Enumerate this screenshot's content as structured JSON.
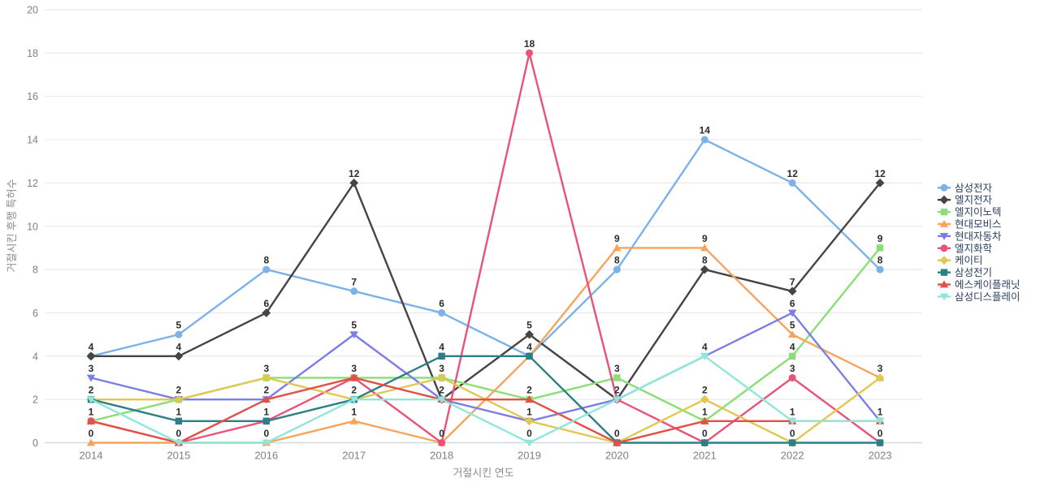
{
  "chart_data": {
    "type": "line",
    "title": "",
    "xlabel": "거절시킨 연도",
    "ylabel": "거절시킨 후행 특허수",
    "x": [
      "2014",
      "2015",
      "2016",
      "2017",
      "2018",
      "2019",
      "2020",
      "2021",
      "2022",
      "2023"
    ],
    "ylim": [
      0,
      20
    ],
    "ytick_step": 2,
    "yticks": [
      0,
      2,
      4,
      6,
      8,
      10,
      12,
      14,
      16,
      18,
      20
    ],
    "grid": "horizontal",
    "legend_position": "right",
    "value_labels": true,
    "colors": {
      "grid": "#e9e9e9",
      "zeroline": "#c8d4e3",
      "tick_text": "#7f7f7f",
      "axis_title_text": "#8c8c8c",
      "data_label_text": "#2b2b2b",
      "legend_text": "#2a3f5f",
      "background": "#ffffff"
    },
    "series": [
      {
        "name": "삼성전자",
        "color": "#7db2e8",
        "marker": "circle",
        "values": [
          4,
          5,
          8,
          7,
          6,
          4,
          8,
          14,
          12,
          8
        ]
      },
      {
        "name": "엘지전자",
        "color": "#454545",
        "marker": "diamond",
        "values": [
          4,
          4,
          6,
          12,
          2,
          5,
          2,
          8,
          7,
          12
        ]
      },
      {
        "name": "엘지이노텍",
        "color": "#89de74",
        "marker": "square",
        "values": [
          1,
          2,
          3,
          3,
          3,
          2,
          3,
          1,
          4,
          9
        ]
      },
      {
        "name": "현대모비스",
        "color": "#f7a45c",
        "marker": "triangle-up",
        "values": [
          0,
          0,
          0,
          1,
          0,
          4,
          9,
          9,
          5,
          3
        ]
      },
      {
        "name": "현대자동차",
        "color": "#7b7ee4",
        "marker": "triangle-down",
        "values": [
          3,
          2,
          2,
          5,
          2,
          1,
          2,
          4,
          6,
          1
        ]
      },
      {
        "name": "엘지화학",
        "color": "#e95379",
        "marker": "circle",
        "values": [
          1,
          0,
          1,
          3,
          0,
          18,
          2,
          0,
          3,
          0
        ]
      },
      {
        "name": "케이티",
        "color": "#e0c852",
        "marker": "diamond",
        "values": [
          2,
          2,
          3,
          2,
          3,
          1,
          0,
          2,
          0,
          3
        ]
      },
      {
        "name": "삼성전기",
        "color": "#2c7f85",
        "marker": "square",
        "values": [
          2,
          1,
          1,
          2,
          4,
          4,
          0,
          0,
          0,
          0
        ]
      },
      {
        "name": "에스케이플래닛",
        "color": "#e25048",
        "marker": "triangle-up",
        "values": [
          1,
          0,
          2,
          3,
          2,
          2,
          0,
          1,
          1,
          1
        ]
      },
      {
        "name": "삼성디스플레이",
        "color": "#90e6da",
        "marker": "triangle-down",
        "values": [
          2,
          0,
          0,
          2,
          2,
          0,
          2,
          4,
          1,
          1
        ]
      }
    ]
  }
}
